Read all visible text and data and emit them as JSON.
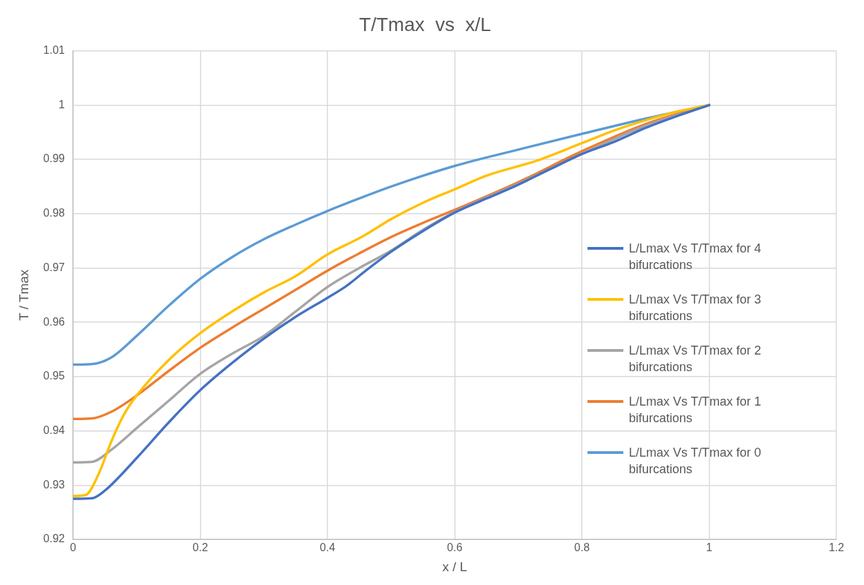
{
  "chart_data": {
    "type": "line",
    "title": "T/Tmax  vs  x/L",
    "xlabel": "x / L",
    "ylabel": "T / Tmax",
    "xlim": [
      0,
      1.2
    ],
    "xticks": [
      0,
      0.2,
      0.4,
      0.6,
      0.8,
      1,
      1.2
    ],
    "ylim": [
      0.92,
      1.01
    ],
    "yticks": [
      0.92,
      0.93,
      0.94,
      0.95,
      0.96,
      0.97,
      0.98,
      0.99,
      1,
      1.01
    ],
    "grid": true,
    "legend": "right",
    "marker": "none",
    "line_style": "solid",
    "series": [
      {
        "name": "L/Lmax Vs T/Tmax for 4 bifurcations",
        "color": "#4472c4",
        "x": [
          0,
          0.03,
          0.05,
          0.1,
          0.15,
          0.2,
          0.25,
          0.3,
          0.35,
          0.4,
          0.43,
          0.46,
          0.5,
          0.55,
          0.6,
          0.65,
          0.69,
          0.75,
          0.8,
          0.85,
          0.9,
          0.95,
          1
        ],
        "values": [
          0.9275,
          0.9276,
          0.929,
          0.935,
          0.9415,
          0.9475,
          0.9525,
          0.957,
          0.961,
          0.9645,
          0.9667,
          0.9695,
          0.973,
          0.9768,
          0.9802,
          0.9828,
          0.9848,
          0.9882,
          0.991,
          0.9932,
          0.9958,
          0.998,
          1
        ]
      },
      {
        "name": "L/Lmax Vs T/Tmax for 3 bifurcations",
        "color": "#ffc000",
        "x": [
          0,
          0.02,
          0.04,
          0.06,
          0.08,
          0.1,
          0.15,
          0.2,
          0.25,
          0.3,
          0.35,
          0.4,
          0.455,
          0.5,
          0.55,
          0.6,
          0.65,
          0.73,
          0.8,
          0.85,
          0.9,
          0.95,
          1
        ],
        "values": [
          0.928,
          0.9282,
          0.932,
          0.938,
          0.943,
          0.9465,
          0.953,
          0.958,
          0.962,
          0.9655,
          0.9685,
          0.9725,
          0.9758,
          0.979,
          0.982,
          0.9845,
          0.987,
          0.9898,
          0.993,
          0.9953,
          0.9972,
          0.9988,
          1
        ]
      },
      {
        "name": "L/Lmax Vs T/Tmax for 2 bifurcations",
        "color": "#a5a5a5",
        "x": [
          0,
          0.03,
          0.06,
          0.1,
          0.15,
          0.2,
          0.25,
          0.3,
          0.35,
          0.4,
          0.45,
          0.5,
          0.55,
          0.6,
          0.7,
          0.8,
          0.9,
          1
        ],
        "values": [
          0.9342,
          0.9343,
          0.9365,
          0.9405,
          0.9455,
          0.9505,
          0.9542,
          0.9575,
          0.962,
          0.9665,
          0.97,
          0.9732,
          0.977,
          0.9803,
          0.9855,
          0.991,
          0.9962,
          1
        ]
      },
      {
        "name": "L/Lmax Vs T/Tmax for 1 bifurcations",
        "color": "#ed7d31",
        "x": [
          0,
          0.03,
          0.06,
          0.1,
          0.15,
          0.2,
          0.25,
          0.3,
          0.35,
          0.4,
          0.45,
          0.5,
          0.55,
          0.6,
          0.7,
          0.8,
          0.9,
          1
        ],
        "values": [
          0.9422,
          0.9423,
          0.9435,
          0.9465,
          0.951,
          0.9553,
          0.959,
          0.9625,
          0.966,
          0.9695,
          0.9727,
          0.9757,
          0.9783,
          0.9807,
          0.9858,
          0.9915,
          0.9965,
          1
        ]
      },
      {
        "name": "L/Lmax Vs T/Tmax for 0 bifurcations",
        "color": "#5b9bd5",
        "x": [
          0,
          0.03,
          0.06,
          0.1,
          0.15,
          0.2,
          0.25,
          0.3,
          0.35,
          0.4,
          0.45,
          0.5,
          0.6,
          0.7,
          0.8,
          0.9,
          1
        ],
        "values": [
          0.9522,
          0.9523,
          0.9535,
          0.9575,
          0.963,
          0.968,
          0.972,
          0.9753,
          0.978,
          0.9805,
          0.9828,
          0.985,
          0.9888,
          0.9918,
          0.9947,
          0.9975,
          1
        ]
      }
    ]
  }
}
